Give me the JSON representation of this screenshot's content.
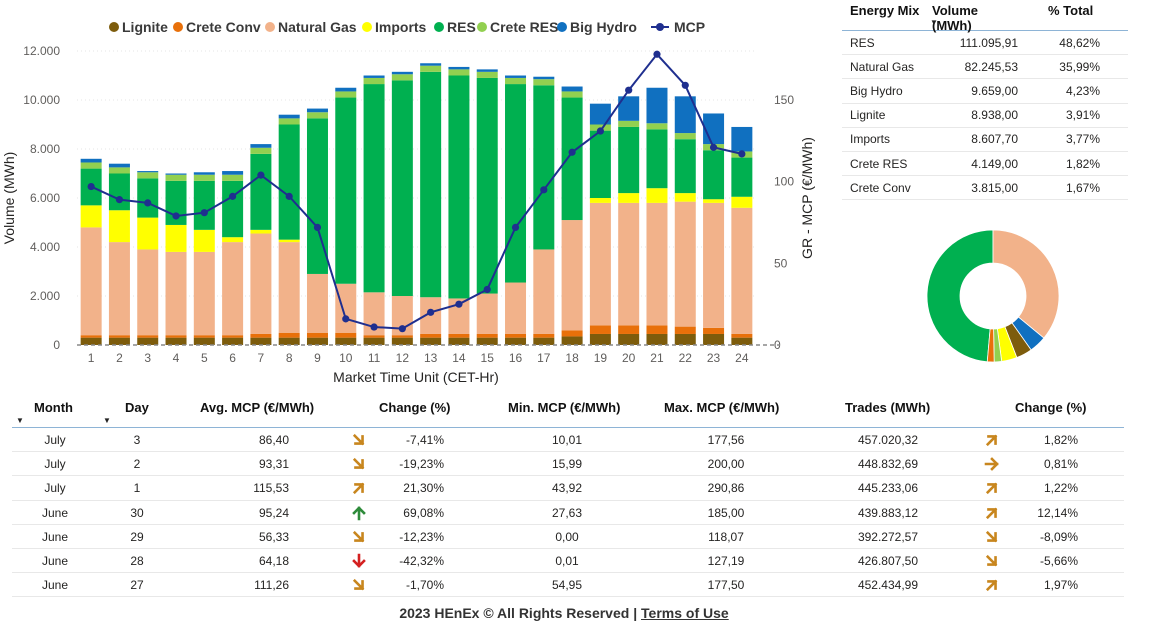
{
  "chart_data": [
    {
      "type": "bar",
      "stacked": true,
      "xlabel": "Market Time Unit (CET-Hr)",
      "ylabel": "Volume (MWh)",
      "y2label": "GR - MCP (€/MWh)",
      "ylim": [
        0,
        12000
      ],
      "y2lim": [
        0,
        180
      ],
      "legend_position": "top",
      "categories": [
        "1",
        "2",
        "3",
        "4",
        "5",
        "6",
        "7",
        "8",
        "9",
        "10",
        "11",
        "12",
        "13",
        "14",
        "15",
        "16",
        "17",
        "18",
        "19",
        "20",
        "21",
        "22",
        "23",
        "24"
      ],
      "yticks": [
        "0",
        "2.000",
        "4.000",
        "6.000",
        "8.000",
        "10.000",
        "12.000"
      ],
      "y2ticks": [
        "0",
        "50",
        "100",
        "150"
      ],
      "series": [
        {
          "name": "Lignite",
          "color": "#7d5c0c",
          "values": [
            300,
            300,
            300,
            300,
            300,
            300,
            300,
            300,
            300,
            300,
            300,
            300,
            300,
            300,
            300,
            300,
            300,
            350,
            450,
            450,
            450,
            450,
            450,
            300
          ]
        },
        {
          "name": "Crete Conv",
          "color": "#e8700a",
          "values": [
            100,
            100,
            100,
            100,
            100,
            100,
            150,
            200,
            200,
            200,
            100,
            100,
            150,
            150,
            150,
            150,
            150,
            250,
            350,
            350,
            350,
            300,
            250,
            150
          ]
        },
        {
          "name": "Natural Gas",
          "color": "#f2b28a",
          "values": [
            4400,
            3800,
            3500,
            3400,
            3400,
            3800,
            4100,
            3700,
            2400,
            2000,
            1750,
            1600,
            1500,
            1450,
            1650,
            2100,
            3450,
            4500,
            5000,
            5000,
            5000,
            5100,
            5100,
            5150
          ]
        },
        {
          "name": "Imports",
          "color": "#ffff00",
          "values": [
            900,
            1300,
            1300,
            1100,
            900,
            200,
            150,
            100,
            0,
            0,
            0,
            0,
            0,
            0,
            0,
            0,
            0,
            0,
            200,
            400,
            600,
            350,
            150,
            450
          ]
        },
        {
          "name": "RES",
          "color": "#00b050",
          "values": [
            1500,
            1500,
            1600,
            1800,
            2000,
            2300,
            3100,
            4700,
            6350,
            7600,
            8500,
            8800,
            9200,
            9100,
            8800,
            8100,
            6700,
            5000,
            2750,
            2700,
            2400,
            2200,
            2000,
            1600
          ]
        },
        {
          "name": "Crete RES",
          "color": "#92d050",
          "values": [
            250,
            250,
            250,
            250,
            250,
            250,
            250,
            250,
            250,
            250,
            250,
            250,
            250,
            250,
            250,
            250,
            250,
            250,
            250,
            250,
            250,
            250,
            250,
            250
          ]
        },
        {
          "name": "Big Hydro",
          "color": "#1070c0",
          "values": [
            150,
            150,
            50,
            50,
            100,
            150,
            150,
            150,
            150,
            150,
            100,
            100,
            100,
            100,
            100,
            100,
            100,
            200,
            850,
            1000,
            1450,
            1500,
            1250,
            1000
          ]
        }
      ],
      "line_series": {
        "name": "MCP",
        "color": "#1f2f8f",
        "axis": "y2",
        "values": [
          97,
          89,
          87,
          79,
          81,
          91,
          104,
          91,
          72,
          16,
          11,
          10,
          20,
          25,
          34,
          72,
          95,
          118,
          131,
          156,
          178,
          159,
          121,
          117
        ]
      }
    },
    {
      "type": "pie",
      "donut": true,
      "labels": [
        "RES",
        "Natural Gas",
        "Big Hydro",
        "Lignite",
        "Imports",
        "Crete RES",
        "Crete Conv"
      ],
      "values": [
        48.62,
        35.99,
        4.23,
        3.91,
        3.77,
        1.82,
        1.67
      ],
      "colors": [
        "#00b050",
        "#f2b28a",
        "#1070c0",
        "#7d5c0c",
        "#ffff00",
        "#92d050",
        "#e8700a"
      ]
    }
  ],
  "mix_table": {
    "headers": [
      "Energy Mix",
      "Volume (MWh)",
      "% Total"
    ],
    "rows": [
      [
        "RES",
        "111.095,91",
        "48,62%"
      ],
      [
        "Natural Gas",
        "82.245,53",
        "35,99%"
      ],
      [
        "Big Hydro",
        "9.659,00",
        "4,23%"
      ],
      [
        "Lignite",
        "8.938,00",
        "3,91%"
      ],
      [
        "Imports",
        "8.607,70",
        "3,77%"
      ],
      [
        "Crete RES",
        "4.149,00",
        "1,82%"
      ],
      [
        "Crete Conv",
        "3.815,00",
        "1,67%"
      ]
    ]
  },
  "daily_table": {
    "headers": [
      "Month",
      "Day",
      "Avg. MCP (€/MWh)",
      "Change (%)",
      "Min. MCP (€/MWh)",
      "Max. MCP (€/MWh)",
      "Trades (MWh)",
      "Change (%)"
    ],
    "rows": [
      {
        "month": "July",
        "day": "3",
        "avg": "86,40",
        "avg_arrow": "down-right-orange",
        "avg_change": "-7,41%",
        "min": "10,01",
        "max": "177,56",
        "trades": "457.020,32",
        "trades_arrow": "up-right-orange",
        "trades_change": "1,82%"
      },
      {
        "month": "July",
        "day": "2",
        "avg": "93,31",
        "avg_arrow": "down-right-orange",
        "avg_change": "-19,23%",
        "min": "15,99",
        "max": "200,00",
        "trades": "448.832,69",
        "trades_arrow": "right-orange",
        "trades_change": "0,81%"
      },
      {
        "month": "July",
        "day": "1",
        "avg": "115,53",
        "avg_arrow": "up-right-orange",
        "avg_change": "21,30%",
        "min": "43,92",
        "max": "290,86",
        "trades": "445.233,06",
        "trades_arrow": "up-right-orange",
        "trades_change": "1,22%"
      },
      {
        "month": "June",
        "day": "30",
        "avg": "95,24",
        "avg_arrow": "up-green",
        "avg_change": "69,08%",
        "min": "27,63",
        "max": "185,00",
        "trades": "439.883,12",
        "trades_arrow": "up-right-orange",
        "trades_change": "12,14%"
      },
      {
        "month": "June",
        "day": "29",
        "avg": "56,33",
        "avg_arrow": "down-right-orange",
        "avg_change": "-12,23%",
        "min": "0,00",
        "max": "118,07",
        "trades": "392.272,57",
        "trades_arrow": "down-right-orange",
        "trades_change": "-8,09%"
      },
      {
        "month": "June",
        "day": "28",
        "avg": "64,18",
        "avg_arrow": "down-red",
        "avg_change": "-42,32%",
        "min": "0,01",
        "max": "127,19",
        "trades": "426.807,50",
        "trades_arrow": "down-right-orange",
        "trades_change": "-5,66%"
      },
      {
        "month": "June",
        "day": "27",
        "avg": "111,26",
        "avg_arrow": "down-right-orange",
        "avg_change": "-1,70%",
        "min": "54,95",
        "max": "177,50",
        "trades": "452.434,99",
        "trades_arrow": "up-right-orange",
        "trades_change": "1,97%"
      }
    ]
  },
  "footer": {
    "text": "2023 HEnEx © All Rights Reserved |",
    "link": "Terms of Use"
  },
  "colors": {
    "arrow_orange": "#c8861e",
    "arrow_green": "#2e8b3a",
    "arrow_red": "#d42020",
    "header_rule": "#8eb4d6"
  }
}
